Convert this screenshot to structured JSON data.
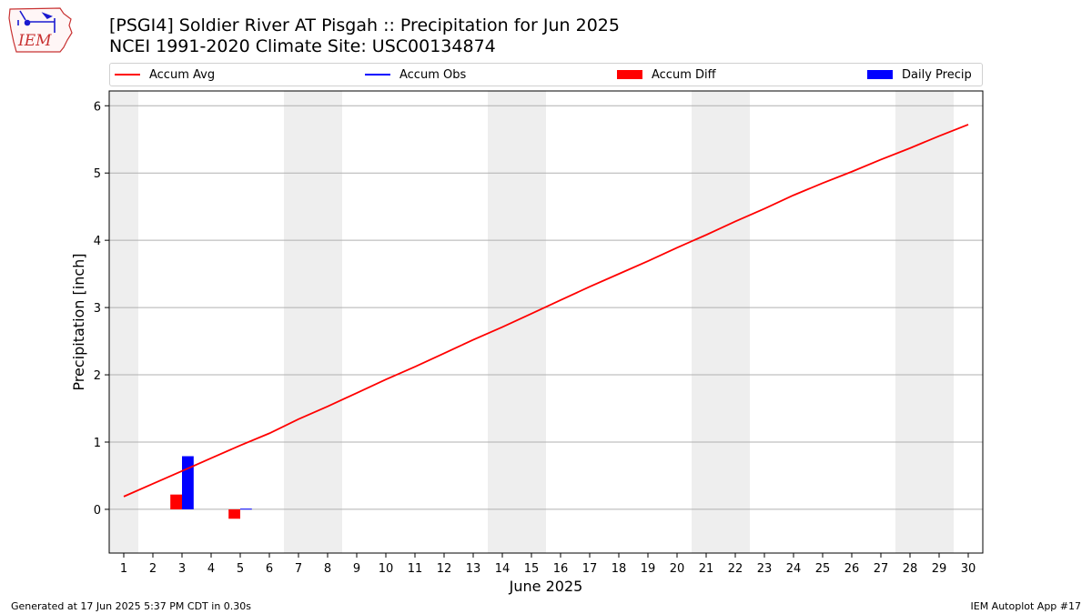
{
  "header": {
    "title_line1": "[PSGI4] Soldier River  AT Pisgah :: Precipitation for Jun 2025",
    "title_line2": "NCEI 1991-2020 Climate Site: USC00134874"
  },
  "logo": {
    "text": "IEM"
  },
  "legend": {
    "items": [
      {
        "label": "Accum Avg",
        "color": "#ff0000",
        "kind": "line"
      },
      {
        "label": "Accum Obs",
        "color": "#0000ff",
        "kind": "line"
      },
      {
        "label": "Accum Diff",
        "color": "#ff0000",
        "kind": "bar"
      },
      {
        "label": "Daily Precip",
        "color": "#0000ff",
        "kind": "bar"
      }
    ]
  },
  "footer": {
    "generated": "Generated at 17 Jun 2025 5:37 PM CDT in 0.30s",
    "app": "IEM Autoplot App #17"
  },
  "chart_data": {
    "type": "bar",
    "xlabel": "June 2025",
    "ylabel": "Precipitation [inch]",
    "xlim": [
      0.5,
      30.5
    ],
    "ylim": [
      -0.65,
      6.22
    ],
    "yticks": [
      0,
      1,
      2,
      3,
      4,
      5,
      6
    ],
    "grid": "horizontal",
    "weekend_days": [
      1,
      7,
      8,
      14,
      15,
      21,
      22,
      28,
      29
    ],
    "days": [
      1,
      2,
      3,
      4,
      5,
      6,
      7,
      8,
      9,
      10,
      11,
      12,
      13,
      14,
      15,
      16,
      17,
      18,
      19,
      20,
      21,
      22,
      23,
      24,
      25,
      26,
      27,
      28,
      29,
      30
    ],
    "accum_avg": [
      0.19,
      0.38,
      0.57,
      0.76,
      0.95,
      1.13,
      1.34,
      1.53,
      1.73,
      1.93,
      2.12,
      2.32,
      2.52,
      2.71,
      2.91,
      3.11,
      3.31,
      3.5,
      3.69,
      3.89,
      4.08,
      4.28,
      4.47,
      4.67,
      4.85,
      5.02,
      5.2,
      5.37,
      5.55,
      5.72
    ],
    "accum_diff": [
      {
        "day": 3,
        "value": 0.22
      },
      {
        "day": 5,
        "value": -0.14
      }
    ],
    "daily_precip": [
      {
        "day": 3,
        "value": 0.79
      },
      {
        "day": 5,
        "value": 0.01
      }
    ],
    "accum_obs": []
  }
}
